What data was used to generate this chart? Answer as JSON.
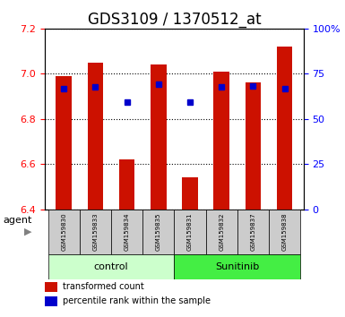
{
  "title": "GDS3109 / 1370512_at",
  "samples": [
    "GSM159830",
    "GSM159833",
    "GSM159834",
    "GSM159835",
    "GSM159831",
    "GSM159832",
    "GSM159837",
    "GSM159838"
  ],
  "bar_values": [
    6.99,
    7.05,
    6.62,
    7.04,
    6.54,
    7.01,
    6.96,
    7.12
  ],
  "percentile_values": [
    6.935,
    6.94,
    6.875,
    6.955,
    6.875,
    6.94,
    6.945,
    6.935
  ],
  "ylim_left": [
    6.4,
    7.2
  ],
  "ylim_right": [
    0,
    100
  ],
  "yticks_left": [
    6.4,
    6.6,
    6.8,
    7.0,
    7.2
  ],
  "yticks_right": [
    0,
    25,
    50,
    75,
    100
  ],
  "ytick_labels_right": [
    "0",
    "25",
    "50",
    "75",
    "100%"
  ],
  "bar_color": "#cc1100",
  "dot_color": "#0000cc",
  "control_group": [
    "GSM159830",
    "GSM159833",
    "GSM159834",
    "GSM159835"
  ],
  "sunitinib_group": [
    "GSM159831",
    "GSM159832",
    "GSM159837",
    "GSM159838"
  ],
  "control_label": "control",
  "sunitinib_label": "Sunitinib",
  "agent_label": "agent",
  "legend_bar_label": "transformed count",
  "legend_dot_label": "percentile rank within the sample",
  "control_bg": "#ccffcc",
  "sunitinib_bg": "#44ee44",
  "sample_bg": "#cccccc",
  "bar_width": 0.5,
  "bar_bottom": 6.4,
  "title_fontsize": 12,
  "tick_fontsize": 8,
  "label_fontsize": 9,
  "grid_color": "#000000",
  "grid_linestyle": "dotted"
}
